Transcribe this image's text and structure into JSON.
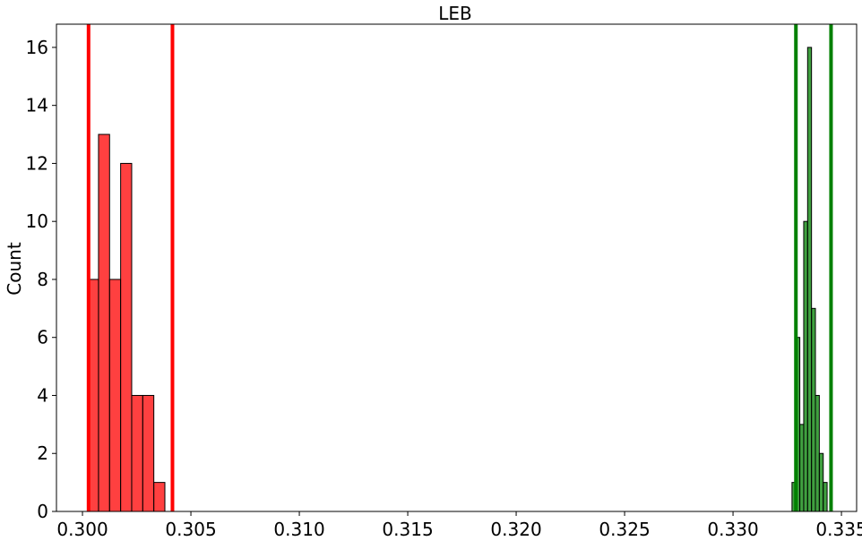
{
  "chart_data": {
    "type": "bar",
    "title": "LEB",
    "xlabel": "",
    "ylabel": "Count",
    "xlim": [
      0.2988,
      0.3357
    ],
    "ylim": [
      0,
      16.8
    ],
    "grid": false,
    "x_ticks": [
      0.3,
      0.305,
      0.31,
      0.315,
      0.32,
      0.325,
      0.33,
      0.335
    ],
    "x_tick_labels": [
      "0.300",
      "0.305",
      "0.310",
      "0.315",
      "0.320",
      "0.325",
      "0.330",
      "0.335"
    ],
    "y_ticks": [
      0,
      2,
      4,
      6,
      8,
      10,
      12,
      14,
      16
    ],
    "y_tick_labels": [
      "0",
      "2",
      "4",
      "6",
      "8",
      "10",
      "12",
      "14",
      "16"
    ],
    "series": [
      {
        "color": "#ff0000",
        "bins": [
          {
            "x0": 0.30023,
            "x1": 0.30074,
            "count": 8
          },
          {
            "x0": 0.30074,
            "x1": 0.30125,
            "count": 13
          },
          {
            "x0": 0.30125,
            "x1": 0.30176,
            "count": 8
          },
          {
            "x0": 0.30176,
            "x1": 0.30227,
            "count": 12
          },
          {
            "x0": 0.30227,
            "x1": 0.30278,
            "count": 4
          },
          {
            "x0": 0.30278,
            "x1": 0.30329,
            "count": 4
          },
          {
            "x0": 0.30329,
            "x1": 0.3038,
            "count": 1
          }
        ],
        "vlines": [
          0.30028,
          0.30415
        ]
      },
      {
        "color": "#008000",
        "bins": [
          {
            "x0": 0.33272,
            "x1": 0.3329,
            "count": 1
          },
          {
            "x0": 0.3329,
            "x1": 0.33308,
            "count": 6
          },
          {
            "x0": 0.33308,
            "x1": 0.33326,
            "count": 3
          },
          {
            "x0": 0.33326,
            "x1": 0.33344,
            "count": 10
          },
          {
            "x0": 0.33344,
            "x1": 0.33362,
            "count": 16
          },
          {
            "x0": 0.33362,
            "x1": 0.3338,
            "count": 7
          },
          {
            "x0": 0.3338,
            "x1": 0.33398,
            "count": 4
          },
          {
            "x0": 0.33398,
            "x1": 0.33416,
            "count": 2
          },
          {
            "x0": 0.33416,
            "x1": 0.33434,
            "count": 1
          }
        ],
        "vlines": [
          0.3329,
          0.33452
        ]
      }
    ]
  }
}
